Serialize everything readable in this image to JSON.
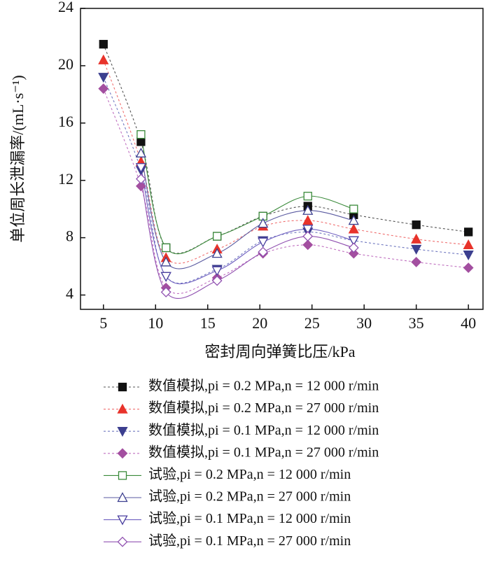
{
  "chart_data": {
    "type": "line",
    "x_label": "密封周向弹簧比压/kPa",
    "y_label": "单位周长泄漏率/(mL·s⁻¹)",
    "x": [
      5,
      8.6,
      11,
      15.9,
      20.3,
      24.6,
      29,
      35,
      40
    ],
    "xlim": [
      2.8,
      41.4
    ],
    "xticks": [
      5,
      10,
      15,
      20,
      25,
      30,
      35,
      40
    ],
    "ylim": [
      3,
      24
    ],
    "yticks": [
      4,
      8,
      12,
      16,
      20,
      24
    ],
    "series": [
      {
        "name": "数值模拟,pi = 0.2 MPa,n = 12 000 r/min",
        "color": "#111111",
        "line_color": "#555555",
        "dashed": true,
        "marker": "square",
        "filled": true,
        "values": [
          21.5,
          14.7,
          7.3,
          8.1,
          9.5,
          10.2,
          9.6,
          8.9,
          8.4
        ]
      },
      {
        "name": "数值模拟,pi = 0.2 MPa,n = 27 000 r/min",
        "color": "#e8332b",
        "line_color": "#f07070",
        "dashed": true,
        "marker": "triangle-up",
        "filled": true,
        "values": [
          20.4,
          13.3,
          6.6,
          7.2,
          8.8,
          9.2,
          8.6,
          7.9,
          7.5
        ]
      },
      {
        "name": "数值模拟,pi = 0.1 MPa,n = 12 000 r/min",
        "color": "#3c3f8f",
        "line_color": "#7078c0",
        "dashed": true,
        "marker": "triangle-down",
        "filled": true,
        "values": [
          19.2,
          12.7,
          5.3,
          5.8,
          7.8,
          8.4,
          7.8,
          7.2,
          6.8
        ]
      },
      {
        "name": "数值模拟,pi = 0.1 MPa,n = 27 000 r/min",
        "color": "#a34fa0",
        "line_color": "#c070c0",
        "dashed": true,
        "marker": "diamond",
        "filled": true,
        "values": [
          18.4,
          11.6,
          4.5,
          5.2,
          6.9,
          7.5,
          6.9,
          6.3,
          5.9
        ]
      },
      {
        "name": "试验,pi = 0.2 MPa,n = 12 000 r/min",
        "color": "#3a8a3a",
        "line_color": "#3a8a3a",
        "dashed": false,
        "marker": "square",
        "filled": false,
        "values": [
          null,
          15.2,
          7.3,
          8.1,
          9.5,
          10.9,
          10.0,
          null,
          null
        ]
      },
      {
        "name": "试验,pi = 0.2 MPa,n = 27 000 r/min",
        "color": "#3c3f8f",
        "line_color": "#5a5aa0",
        "dashed": false,
        "marker": "triangle-up",
        "filled": false,
        "values": [
          null,
          13.9,
          6.3,
          6.9,
          9.0,
          9.9,
          9.2,
          null,
          null
        ]
      },
      {
        "name": "试验,pi = 0.1 MPa,n = 12 000 r/min",
        "color": "#4a3f9f",
        "line_color": "#7060c0",
        "dashed": false,
        "marker": "triangle-down",
        "filled": false,
        "values": [
          null,
          12.9,
          5.3,
          5.7,
          7.7,
          8.6,
          7.8,
          null,
          null
        ]
      },
      {
        "name": "试验,pi = 0.1 MPa,n = 27 000 r/min",
        "color": "#9050b0",
        "line_color": "#9050b0",
        "dashed": false,
        "marker": "diamond",
        "filled": false,
        "values": [
          null,
          12.1,
          4.2,
          5.0,
          7.0,
          8.1,
          7.3,
          null,
          null
        ]
      }
    ]
  }
}
